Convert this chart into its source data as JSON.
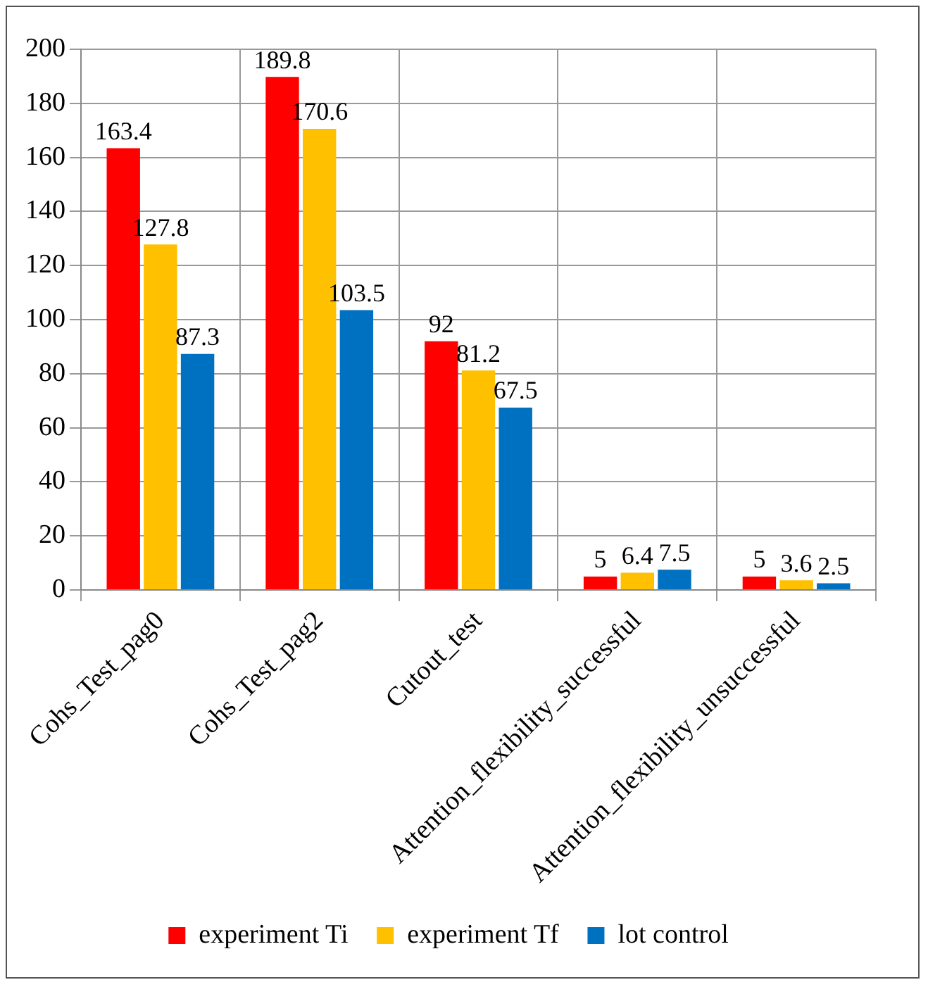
{
  "chart_data": {
    "type": "bar",
    "categories": [
      "Cohs_Test_pag0",
      "Cohs_Test_pag2",
      "Cutout_test",
      "Attention_flexibility_successful",
      "Attention_flexibility_unsuccessful"
    ],
    "series": [
      {
        "name": "experiment Ti",
        "color": "#ff0000",
        "values": [
          163.4,
          189.8,
          92,
          5,
          5
        ]
      },
      {
        "name": "experiment Tf",
        "color": "#ffc000",
        "values": [
          127.8,
          170.6,
          81.2,
          6.4,
          3.6
        ]
      },
      {
        "name": "lot control",
        "color": "#0070c0",
        "values": [
          87.3,
          103.5,
          67.5,
          7.5,
          2.5
        ]
      }
    ],
    "ylim": [
      0,
      200
    ],
    "yticks": [
      0,
      20,
      40,
      60,
      80,
      100,
      120,
      140,
      160,
      180,
      200
    ],
    "grid": true,
    "legend": "bottom",
    "data_labels": true
  }
}
